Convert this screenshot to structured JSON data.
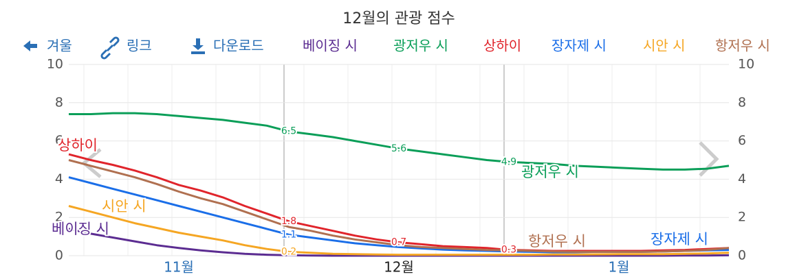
{
  "toolbar": {
    "back": "겨울",
    "link": "링크",
    "download": "다운로드"
  },
  "chart_data": {
    "type": "line",
    "title": "12월의 관광 점수",
    "categories": [
      null,
      null,
      null,
      null,
      null,
      "11월",
      null,
      null,
      null,
      null,
      null,
      null,
      null,
      null,
      null,
      "12월",
      null,
      null,
      null,
      null,
      null,
      null,
      null,
      null,
      null,
      "1월",
      null,
      null,
      null,
      null,
      null
    ],
    "ylim": [
      0,
      10
    ],
    "yticks": [
      0,
      2,
      4,
      6,
      8,
      10
    ],
    "grid": true,
    "series": [
      {
        "name": "베이징 시",
        "color": "#5b2c91",
        "values": [
          1.4,
          1.15,
          0.95,
          0.75,
          0.55,
          0.4,
          0.28,
          0.18,
          0.1,
          0.05,
          0.02,
          0.01,
          0,
          0,
          0,
          0,
          0,
          0,
          0,
          0,
          0,
          0,
          0,
          0,
          0,
          0,
          0,
          0,
          0.01,
          0.01,
          0.02
        ]
      },
      {
        "name": "광저우 시",
        "color": "#0a9e58",
        "values": [
          7.4,
          7.4,
          7.45,
          7.45,
          7.4,
          7.3,
          7.2,
          7.1,
          6.95,
          6.8,
          6.5,
          6.35,
          6.2,
          6.0,
          5.8,
          5.6,
          5.45,
          5.3,
          5.15,
          5.0,
          4.9,
          4.85,
          4.8,
          4.7,
          4.65,
          4.6,
          4.55,
          4.5,
          4.5,
          4.55,
          4.7
        ],
        "value_labels": [
          null,
          null,
          null,
          null,
          null,
          null,
          null,
          null,
          null,
          null,
          "6.5",
          null,
          null,
          null,
          null,
          "5.6",
          null,
          null,
          null,
          null,
          "4.9",
          null,
          null,
          null,
          null,
          null,
          null,
          null,
          null,
          null,
          null
        ]
      },
      {
        "name": "상하이",
        "color": "#e0242b",
        "values": [
          5.3,
          5.0,
          4.75,
          4.45,
          4.1,
          3.7,
          3.4,
          3.05,
          2.6,
          2.2,
          1.8,
          1.55,
          1.3,
          1.05,
          0.85,
          0.7,
          0.6,
          0.5,
          0.45,
          0.4,
          0.3,
          0.28,
          0.25,
          0.25,
          0.25,
          0.25,
          0.25,
          0.28,
          0.3,
          0.35,
          0.4
        ],
        "value_labels": [
          null,
          null,
          null,
          null,
          null,
          null,
          null,
          null,
          null,
          null,
          "1.8",
          null,
          null,
          null,
          null,
          "0.7",
          null,
          null,
          null,
          null,
          "0.3",
          null,
          null,
          null,
          null,
          null,
          null,
          null,
          null,
          null,
          null
        ]
      },
      {
        "name": "장자제 시",
        "color": "#1a6ee8",
        "values": [
          4.1,
          3.8,
          3.5,
          3.2,
          2.9,
          2.6,
          2.3,
          2.0,
          1.7,
          1.4,
          1.1,
          0.95,
          0.8,
          0.65,
          0.55,
          0.45,
          0.38,
          0.32,
          0.28,
          0.25,
          0.22,
          0.2,
          0.18,
          0.18,
          0.2,
          0.2,
          0.2,
          0.22,
          0.25,
          0.28,
          0.3
        ],
        "value_labels": [
          null,
          null,
          null,
          null,
          null,
          null,
          null,
          null,
          null,
          null,
          "1.1",
          null,
          null,
          null,
          null,
          null,
          null,
          null,
          null,
          null,
          null,
          null,
          null,
          null,
          null,
          null,
          null,
          null,
          null,
          null,
          null
        ]
      },
      {
        "name": "시안 시",
        "color": "#f5a623",
        "values": [
          2.6,
          2.3,
          2.0,
          1.7,
          1.45,
          1.2,
          1.0,
          0.8,
          0.55,
          0.35,
          0.2,
          0.15,
          0.1,
          0.08,
          0.06,
          0.05,
          0.05,
          0.05,
          0.05,
          0.05,
          0.05,
          0.05,
          0.06,
          0.06,
          0.07,
          0.08,
          0.08,
          0.08,
          0.1,
          0.12,
          0.15
        ],
        "value_labels": [
          null,
          null,
          null,
          null,
          null,
          null,
          null,
          null,
          null,
          null,
          "0.2",
          null,
          null,
          null,
          null,
          null,
          null,
          null,
          null,
          null,
          null,
          null,
          null,
          null,
          null,
          null,
          null,
          null,
          null,
          null,
          null
        ]
      },
      {
        "name": "항저우 시",
        "color": "#b07050",
        "values": [
          5.0,
          4.7,
          4.4,
          4.1,
          3.75,
          3.35,
          3.0,
          2.7,
          2.3,
          1.9,
          1.5,
          1.3,
          1.05,
          0.85,
          0.7,
          0.55,
          0.45,
          0.4,
          0.35,
          0.3,
          0.28,
          0.25,
          0.22,
          0.2,
          0.2,
          0.2,
          0.2,
          0.22,
          0.25,
          0.3,
          0.4
        ]
      }
    ]
  }
}
